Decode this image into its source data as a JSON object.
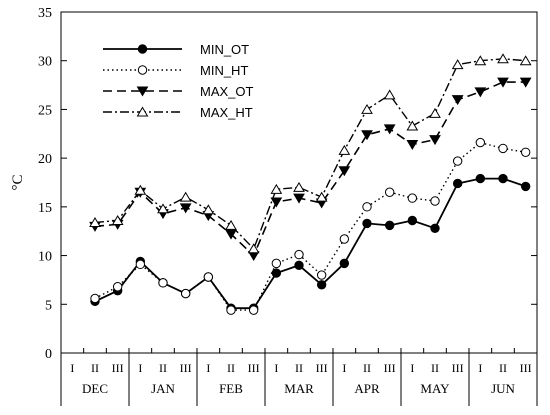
{
  "chart_data": {
    "type": "line",
    "title": "",
    "ylabel": "°C",
    "xlabel": "",
    "ylim": [
      0,
      35
    ],
    "yticks": [
      0,
      5,
      10,
      15,
      20,
      25,
      30,
      35
    ],
    "months": [
      "DEC",
      "JAN",
      "FEB",
      "MAR",
      "APR",
      "MAY",
      "JUN"
    ],
    "dekads": [
      "I",
      "II",
      "III"
    ],
    "categories": [
      "DEC I",
      "DEC II",
      "DEC III",
      "JAN I",
      "JAN II",
      "JAN III",
      "FEB I",
      "FEB II",
      "FEB III",
      "MAR I",
      "MAR II",
      "MAR III",
      "APR I",
      "APR II",
      "APR III",
      "MAY I",
      "MAY II",
      "MAY III",
      "JUN I",
      "JUN II",
      "JUN III"
    ],
    "legend_position": "top-left",
    "series": [
      {
        "name": "MIN_OT",
        "style": "solid",
        "marker": "filled-circle",
        "values": [
          null,
          5.3,
          6.4,
          9.4,
          7.2,
          6.1,
          7.8,
          4.6,
          4.6,
          8.2,
          9.0,
          7.0,
          9.2,
          13.3,
          13.1,
          13.6,
          12.8,
          17.4,
          17.9,
          17.9,
          17.1
        ]
      },
      {
        "name": "MIN_HT",
        "style": "dotted",
        "marker": "open-circle",
        "values": [
          null,
          5.6,
          6.8,
          9.1,
          7.2,
          6.1,
          7.8,
          4.4,
          4.4,
          9.2,
          10.1,
          8.0,
          11.7,
          15.0,
          16.5,
          15.9,
          15.6,
          19.7,
          21.6,
          21.0,
          20.6
        ]
      },
      {
        "name": "MAX_OT",
        "style": "dashed",
        "marker": "filled-triangle-down",
        "values": [
          null,
          13.0,
          13.2,
          16.5,
          14.3,
          14.9,
          14.1,
          12.2,
          10.0,
          15.5,
          15.9,
          15.4,
          18.7,
          22.4,
          23.0,
          21.4,
          21.9,
          26.0,
          26.8,
          27.8,
          27.8
        ]
      },
      {
        "name": "MAX_HT",
        "style": "dash-dot",
        "marker": "open-triangle-up",
        "values": [
          null,
          13.4,
          13.6,
          16.7,
          14.8,
          16.0,
          14.7,
          13.1,
          10.7,
          16.8,
          17.0,
          16.0,
          20.8,
          25.0,
          26.5,
          23.3,
          24.6,
          29.6,
          30.0,
          30.2,
          30.0
        ]
      }
    ]
  }
}
